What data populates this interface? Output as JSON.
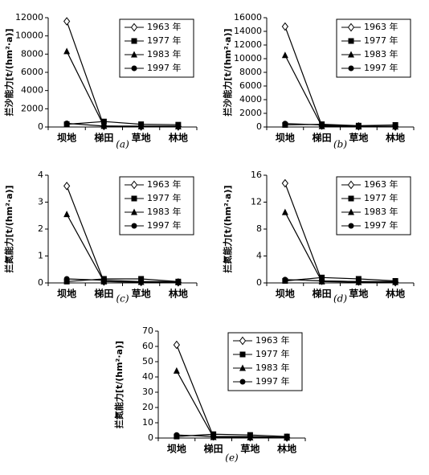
{
  "chart_data": [
    {
      "type": "line",
      "caption": "(a)",
      "ylabel": "拦沙能力[t/(hm²·a)]",
      "categories": [
        "坝地",
        "梯田",
        "草地",
        "林地"
      ],
      "ylim": [
        0,
        12000
      ],
      "yticks": [
        0,
        2000,
        4000,
        6000,
        8000,
        10000,
        12000
      ],
      "series": [
        {
          "name": "1963 年",
          "marker": "diamond",
          "color": "#000",
          "values": [
            11600,
            100,
            50,
            50
          ]
        },
        {
          "name": "1977 年",
          "marker": "square",
          "color": "#000",
          "values": [
            300,
            600,
            300,
            250
          ]
        },
        {
          "name": "1983 年",
          "marker": "triangle",
          "color": "#000",
          "values": [
            8300,
            100,
            50,
            50
          ]
        },
        {
          "name": "1997 年",
          "marker": "circle",
          "color": "#000",
          "values": [
            400,
            100,
            100,
            100
          ]
        }
      ]
    },
    {
      "type": "line",
      "caption": "(b)",
      "ylabel": "拦沙能力[t/(hm²·a)]",
      "categories": [
        "坝地",
        "梯田",
        "草地",
        "林地"
      ],
      "ylim": [
        0,
        16000
      ],
      "yticks": [
        0,
        2000,
        4000,
        6000,
        8000,
        10000,
        12000,
        14000,
        16000
      ],
      "series": [
        {
          "name": "1963 年",
          "marker": "diamond",
          "color": "#000",
          "values": [
            14700,
            200,
            100,
            50
          ]
        },
        {
          "name": "1977 年",
          "marker": "square",
          "color": "#000",
          "values": [
            300,
            400,
            200,
            300
          ]
        },
        {
          "name": "1983 年",
          "marker": "triangle",
          "color": "#000",
          "values": [
            10500,
            100,
            50,
            50
          ]
        },
        {
          "name": "1997 年",
          "marker": "circle",
          "color": "#000",
          "values": [
            500,
            300,
            100,
            100
          ]
        }
      ]
    },
    {
      "type": "line",
      "caption": "(c)",
      "ylabel": "拦氮能力[t/(hm²·a)]",
      "categories": [
        "坝地",
        "梯田",
        "草地",
        "林地"
      ],
      "ylim": [
        0,
        4
      ],
      "yticks": [
        0,
        1,
        2,
        3,
        4
      ],
      "series": [
        {
          "name": "1963 年",
          "marker": "diamond",
          "color": "#000",
          "values": [
            3.6,
            0.05,
            0.03,
            0.02
          ]
        },
        {
          "name": "1977 年",
          "marker": "square",
          "color": "#000",
          "values": [
            0.05,
            0.15,
            0.15,
            0.05
          ]
        },
        {
          "name": "1983 年",
          "marker": "triangle",
          "color": "#000",
          "values": [
            2.55,
            0.05,
            0.03,
            0.02
          ]
        },
        {
          "name": "1997 年",
          "marker": "circle",
          "color": "#000",
          "values": [
            0.15,
            0.1,
            0.05,
            0.05
          ]
        }
      ]
    },
    {
      "type": "line",
      "caption": "(d)",
      "ylabel": "拦氮能力[t/(hm²·a)]",
      "categories": [
        "坝地",
        "梯田",
        "草地",
        "林地"
      ],
      "ylim": [
        0,
        16
      ],
      "yticks": [
        0,
        4,
        8,
        12,
        16
      ],
      "series": [
        {
          "name": "1963 年",
          "marker": "diamond",
          "color": "#000",
          "values": [
            14.8,
            0.3,
            0.2,
            0.1
          ]
        },
        {
          "name": "1977 年",
          "marker": "square",
          "color": "#000",
          "values": [
            0.3,
            0.8,
            0.6,
            0.3
          ]
        },
        {
          "name": "1983 年",
          "marker": "triangle",
          "color": "#000",
          "values": [
            10.5,
            0.2,
            0.1,
            0.1
          ]
        },
        {
          "name": "1997 年",
          "marker": "circle",
          "color": "#000",
          "values": [
            0.5,
            0.3,
            0.2,
            0.2
          ]
        }
      ]
    },
    {
      "type": "line",
      "caption": "(e)",
      "ylabel": "拦氮能力[t/(hm²·a)]",
      "categories": [
        "坝地",
        "梯田",
        "草地",
        "林地"
      ],
      "ylim": [
        0,
        70
      ],
      "yticks": [
        0,
        10,
        20,
        30,
        40,
        50,
        60,
        70
      ],
      "series": [
        {
          "name": "1963 年",
          "marker": "diamond",
          "color": "#000",
          "values": [
            61,
            1,
            0.5,
            0.3
          ]
        },
        {
          "name": "1977 年",
          "marker": "square",
          "color": "#000",
          "values": [
            1,
            2.5,
            2,
            1
          ]
        },
        {
          "name": "1983 年",
          "marker": "triangle",
          "color": "#000",
          "values": [
            44,
            0.5,
            0.3,
            0.2
          ]
        },
        {
          "name": "1997 年",
          "marker": "circle",
          "color": "#000",
          "values": [
            2,
            1,
            1,
            0.5
          ]
        }
      ]
    }
  ]
}
